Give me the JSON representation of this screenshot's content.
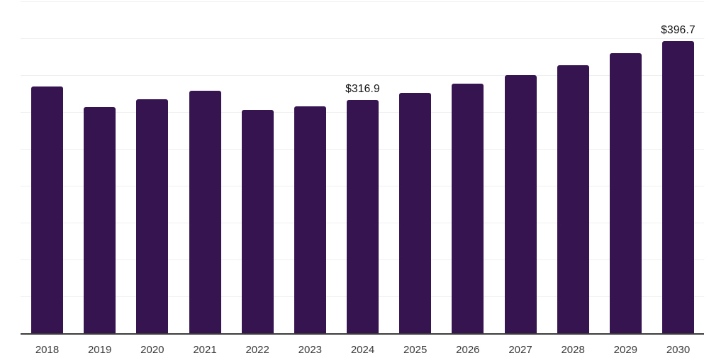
{
  "chart_data": {
    "type": "bar",
    "title": "",
    "xlabel": "",
    "ylabel": "",
    "categories": [
      "2018",
      "2019",
      "2020",
      "2021",
      "2022",
      "2023",
      "2024",
      "2025",
      "2026",
      "2027",
      "2028",
      "2029",
      "2030"
    ],
    "values": [
      335,
      307,
      318,
      329,
      304,
      308,
      316.9,
      327,
      339,
      351,
      364,
      380,
      396.7
    ],
    "value_labels": [
      "",
      "",
      "",
      "",
      "",
      "",
      "$316.9",
      "",
      "",
      "",
      "",
      "",
      "$396.7"
    ],
    "ylim": [
      0,
      450
    ],
    "grid": "horizontal",
    "grid_step": 50,
    "y_tick_labels": "none",
    "legend": "none",
    "colors": {
      "bar": "#361450",
      "axis_line": "#3C3C3C",
      "gridline": "#EFEFEF",
      "tick_label": "#3B3B3B",
      "value_label": "#121212",
      "background": "#FFFFFF"
    }
  }
}
